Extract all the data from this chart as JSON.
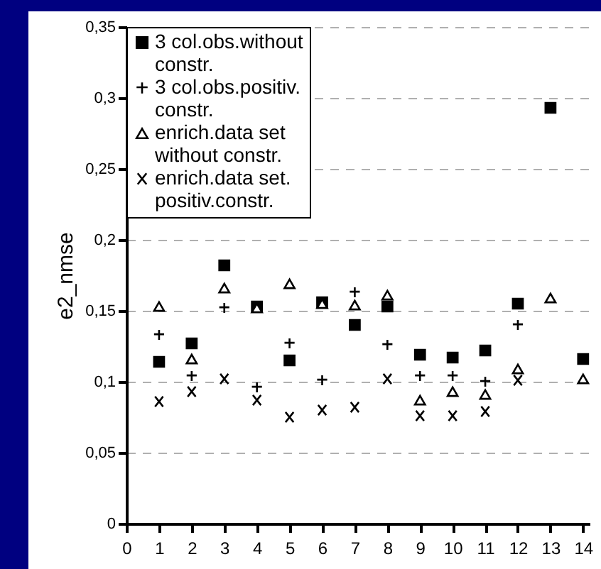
{
  "chart_data": {
    "type": "scatter",
    "ylabel": "e2_nmse",
    "x": [
      1,
      2,
      3,
      4,
      5,
      6,
      7,
      8,
      9,
      10,
      11,
      12,
      13,
      14
    ],
    "xlim": [
      0,
      14.2
    ],
    "xticks": [
      0,
      1,
      2,
      3,
      4,
      5,
      6,
      7,
      8,
      9,
      10,
      11,
      12,
      13,
      14
    ],
    "ylim": [
      0,
      0.35
    ],
    "yticks": [
      {
        "value": 0,
        "label": "0"
      },
      {
        "value": 0.05,
        "label": "0,05"
      },
      {
        "value": 0.1,
        "label": "0,1"
      },
      {
        "value": 0.15,
        "label": "0,15"
      },
      {
        "value": 0.2,
        "label": "0,2"
      },
      {
        "value": 0.25,
        "label": "0,25"
      },
      {
        "value": 0.3,
        "label": "0,3"
      },
      {
        "value": 0.35,
        "label": "0,35"
      }
    ],
    "grid": "y",
    "legend": "top left",
    "series": [
      {
        "name": "3 col.obs.without constr.",
        "color": "#000000",
        "marker": "square",
        "values": [
          0.114,
          0.127,
          0.182,
          0.153,
          0.115,
          0.156,
          0.14,
          0.153,
          0.119,
          0.117,
          0.122,
          0.155,
          0.293,
          0.116
        ]
      },
      {
        "name": "3 col.obs.positiv. constr.",
        "color": "#000000",
        "marker": "cross",
        "values": [
          0.133,
          0.104,
          0.152,
          0.096,
          0.127,
          0.101,
          0.163,
          0.126,
          0.104,
          0.104,
          0.1,
          0.14,
          null,
          null
        ]
      },
      {
        "name": "enrich.data set without constr.",
        "color": "#000000",
        "marker": "triangle",
        "values": [
          0.153,
          0.116,
          0.166,
          0.152,
          0.169,
          0.155,
          0.154,
          0.161,
          0.087,
          0.093,
          0.091,
          0.109,
          0.159,
          0.102
        ]
      },
      {
        "name": "enrich.data set. positiv.constr.",
        "color": "#000000",
        "marker": "x",
        "values": [
          0.086,
          0.093,
          0.102,
          0.087,
          0.075,
          0.08,
          0.082,
          0.102,
          0.076,
          0.076,
          0.079,
          0.101,
          null,
          null
        ]
      }
    ]
  }
}
